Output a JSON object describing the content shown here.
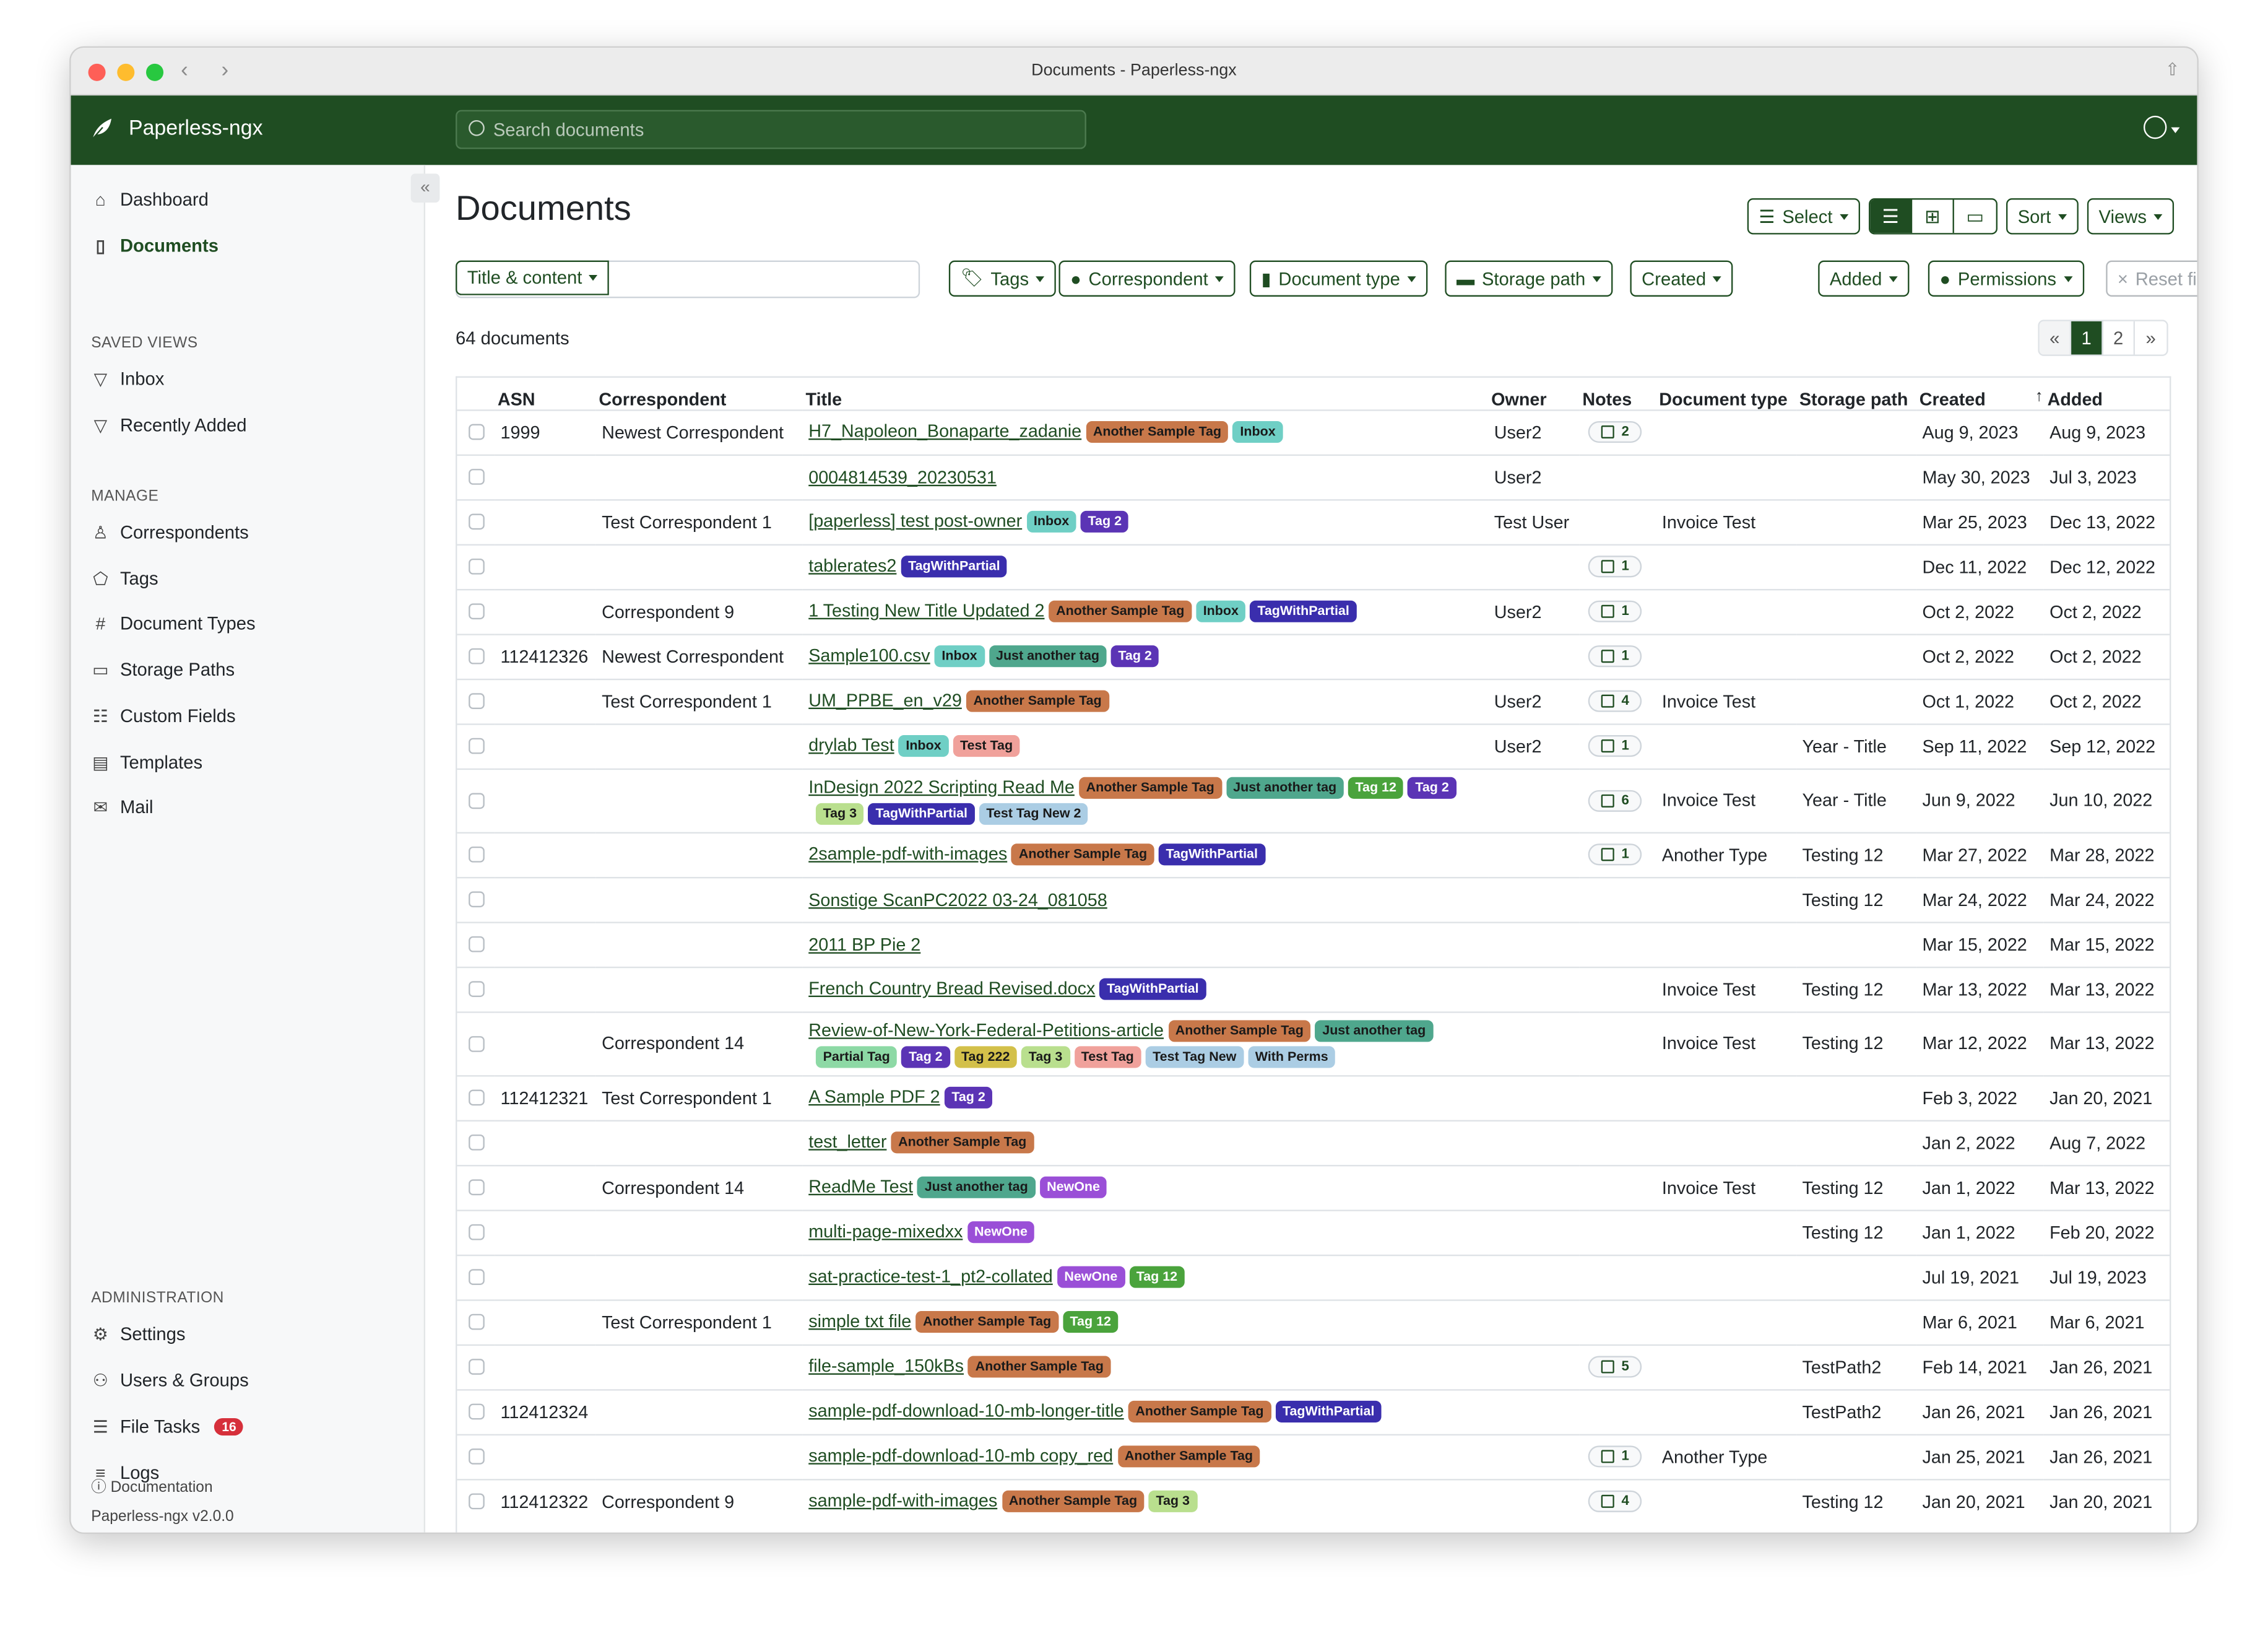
{
  "window": {
    "title": "Documents - Paperless-ngx"
  },
  "header": {
    "brand": "Paperless-ngx",
    "search_placeholder": "Search documents"
  },
  "sidebar": {
    "items": [
      {
        "label": "Dashboard",
        "icon": "house-icon"
      },
      {
        "label": "Documents",
        "icon": "file-icon",
        "active": true
      }
    ],
    "saved_views_heading": "SAVED VIEWS",
    "saved_views": [
      {
        "label": "Inbox",
        "icon": "funnel-icon"
      },
      {
        "label": "Recently Added",
        "icon": "funnel-icon"
      }
    ],
    "manage_heading": "MANAGE",
    "manage": [
      {
        "label": "Correspondents",
        "icon": "person-icon"
      },
      {
        "label": "Tags",
        "icon": "tags-icon"
      },
      {
        "label": "Document Types",
        "icon": "hash-icon"
      },
      {
        "label": "Storage Paths",
        "icon": "folder-icon"
      },
      {
        "label": "Custom Fields",
        "icon": "ui-radios-icon"
      },
      {
        "label": "Templates",
        "icon": "file-text-icon"
      },
      {
        "label": "Mail",
        "icon": "envelope-icon"
      }
    ],
    "admin_heading": "ADMINISTRATION",
    "admin": [
      {
        "label": "Settings",
        "icon": "gear-icon"
      },
      {
        "label": "Users & Groups",
        "icon": "people-icon"
      },
      {
        "label": "File Tasks",
        "icon": "list-task-icon",
        "badge": "16"
      },
      {
        "label": "Logs",
        "icon": "text-list-icon"
      }
    ],
    "documentation": "Documentation",
    "version": "Paperless-ngx v2.0.0"
  },
  "main": {
    "title": "Documents",
    "toolbar": {
      "select": "Select",
      "sort": "Sort",
      "views": "Views",
      "active_view": "table"
    },
    "filters": {
      "text_mode": "Title & content",
      "text_value": "",
      "tags": "Tags",
      "correspondent": "Correspondent",
      "document_type": "Document type",
      "storage_path": "Storage path",
      "created": "Created",
      "added": "Added",
      "permissions": "Permissions",
      "reset": "Reset filters"
    },
    "count": "64 documents",
    "pagination": {
      "prev": "«",
      "pages": [
        "1",
        "2"
      ],
      "current": "1",
      "next": "»"
    },
    "columns": [
      "ASN",
      "Correspondent",
      "Title",
      "Owner",
      "Notes",
      "Document type",
      "Storage path",
      "Created",
      "Added"
    ],
    "sort_column": "Added"
  },
  "tag_colors": {
    "Another Sample Tag": {
      "bg": "#c8784a",
      "fg": "#1a1a1a"
    },
    "Inbox": {
      "bg": "#6fcfc5",
      "fg": "#1a1a1a"
    },
    "Tag 2": {
      "bg": "#5b34b5",
      "fg": "#ffffff"
    },
    "TagWithPartial": {
      "bg": "#3a2ead",
      "fg": "#ffffff"
    },
    "Just another tag": {
      "bg": "#4fa78d",
      "fg": "#1a1a1a"
    },
    "Tag 12": {
      "bg": "#4aa33c",
      "fg": "#ffffff"
    },
    "Tag 3": {
      "bg": "#b9df8e",
      "fg": "#1a1a1a"
    },
    "Test Tag New 2": {
      "bg": "#abcde4",
      "fg": "#1a1a1a"
    },
    "Test Tag New": {
      "bg": "#abcde4",
      "fg": "#1a1a1a"
    },
    "With Perms": {
      "bg": "#abcde4",
      "fg": "#1a1a1a"
    },
    "Test Tag": {
      "bg": "#f0a19b",
      "fg": "#1a1a1a"
    },
    "Partial Tag": {
      "bg": "#8dd9a5",
      "fg": "#1a1a1a"
    },
    "Tag 222": {
      "bg": "#d3c04a",
      "fg": "#1a1a1a"
    },
    "NewOne": {
      "bg": "#9a4fd7",
      "fg": "#ffffff"
    }
  },
  "rows": [
    {
      "asn": "1999",
      "correspondent": "Newest Correspondent",
      "title": "H7_Napoleon_Bonaparte_zadanie",
      "tags": [
        "Another Sample Tag",
        "Inbox"
      ],
      "owner": "User2",
      "notes": "2",
      "doctype": "",
      "storage": "",
      "created": "Aug 9, 2023",
      "added": "Aug 9, 2023"
    },
    {
      "asn": "",
      "correspondent": "",
      "title": "0004814539_20230531",
      "tags": [],
      "owner": "User2",
      "notes": "",
      "doctype": "",
      "storage": "",
      "created": "May 30, 2023",
      "added": "Jul 3, 2023"
    },
    {
      "asn": "",
      "correspondent": "Test Correspondent 1",
      "title": "[paperless] test post-owner",
      "tags": [
        "Inbox",
        "Tag 2"
      ],
      "owner": "Test User",
      "notes": "",
      "doctype": "Invoice Test",
      "storage": "",
      "created": "Mar 25, 2023",
      "added": "Dec 13, 2022"
    },
    {
      "asn": "",
      "correspondent": "",
      "title": "tablerates2",
      "tags": [
        "TagWithPartial"
      ],
      "owner": "",
      "notes": "1",
      "doctype": "",
      "storage": "",
      "created": "Dec 11, 2022",
      "added": "Dec 12, 2022"
    },
    {
      "asn": "",
      "correspondent": "Correspondent 9",
      "title": "1 Testing New Title Updated 2",
      "tags": [
        "Another Sample Tag",
        "Inbox",
        "TagWithPartial"
      ],
      "owner": "User2",
      "notes": "1",
      "doctype": "",
      "storage": "",
      "created": "Oct 2, 2022",
      "added": "Oct 2, 2022"
    },
    {
      "asn": "112412326",
      "correspondent": "Newest Correspondent",
      "title": "Sample100.csv",
      "tags": [
        "Inbox",
        "Just another tag",
        "Tag 2"
      ],
      "owner": "",
      "notes": "1",
      "doctype": "",
      "storage": "",
      "created": "Oct 2, 2022",
      "added": "Oct 2, 2022"
    },
    {
      "asn": "",
      "correspondent": "Test Correspondent 1",
      "title": "UM_PPBE_en_v29",
      "tags": [
        "Another Sample Tag"
      ],
      "owner": "User2",
      "notes": "4",
      "doctype": "Invoice Test",
      "storage": "",
      "created": "Oct 1, 2022",
      "added": "Oct 2, 2022"
    },
    {
      "asn": "",
      "correspondent": "",
      "title": "drylab Test",
      "tags": [
        "Inbox",
        "Test Tag"
      ],
      "owner": "User2",
      "notes": "1",
      "doctype": "",
      "storage": "Year - Title",
      "created": "Sep 11, 2022",
      "added": "Sep 12, 2022"
    },
    {
      "asn": "",
      "correspondent": "",
      "title": "InDesign 2022 Scripting Read Me",
      "tags": [
        "Another Sample Tag",
        "Just another tag",
        "Tag 12",
        "Tag 2"
      ],
      "tags2": [
        "Tag 3",
        "TagWithPartial",
        "Test Tag New 2"
      ],
      "owner": "",
      "notes": "6",
      "doctype": "Invoice Test",
      "storage": "Year - Title",
      "created": "Jun 9, 2022",
      "added": "Jun 10, 2022"
    },
    {
      "asn": "",
      "correspondent": "",
      "title": "2sample-pdf-with-images",
      "tags": [
        "Another Sample Tag",
        "TagWithPartial"
      ],
      "owner": "",
      "notes": "1",
      "doctype": "Another Type",
      "storage": "Testing 12",
      "created": "Mar 27, 2022",
      "added": "Mar 28, 2022"
    },
    {
      "asn": "",
      "correspondent": "",
      "title": "Sonstige ScanPC2022 03-24_081058",
      "tags": [],
      "owner": "",
      "notes": "",
      "doctype": "",
      "storage": "Testing 12",
      "created": "Mar 24, 2022",
      "added": "Mar 24, 2022"
    },
    {
      "asn": "",
      "correspondent": "",
      "title": "2011 BP Pie 2",
      "tags": [],
      "owner": "",
      "notes": "",
      "doctype": "",
      "storage": "",
      "created": "Mar 15, 2022",
      "added": "Mar 15, 2022"
    },
    {
      "asn": "",
      "correspondent": "",
      "title": "French Country Bread Revised.docx",
      "tags": [
        "TagWithPartial"
      ],
      "owner": "",
      "notes": "",
      "doctype": "Invoice Test",
      "storage": "Testing 12",
      "created": "Mar 13, 2022",
      "added": "Mar 13, 2022"
    },
    {
      "asn": "",
      "correspondent": "Correspondent 14",
      "title": "Review-of-New-York-Federal-Petitions-article",
      "tags": [
        "Another Sample Tag",
        "Just another tag"
      ],
      "tags2": [
        "Partial Tag",
        "Tag 2",
        "Tag 222",
        "Tag 3",
        "Test Tag",
        "Test Tag New",
        "With Perms"
      ],
      "owner": "",
      "notes": "",
      "doctype": "Invoice Test",
      "storage": "Testing 12",
      "created": "Mar 12, 2022",
      "added": "Mar 13, 2022"
    },
    {
      "asn": "112412321",
      "correspondent": "Test Correspondent 1",
      "title": "A Sample PDF 2",
      "tags": [
        "Tag 2"
      ],
      "owner": "",
      "notes": "",
      "doctype": "",
      "storage": "",
      "created": "Feb 3, 2022",
      "added": "Jan 20, 2021"
    },
    {
      "asn": "",
      "correspondent": "",
      "title": "test_letter",
      "tags": [
        "Another Sample Tag"
      ],
      "owner": "",
      "notes": "",
      "doctype": "",
      "storage": "",
      "created": "Jan 2, 2022",
      "added": "Aug 7, 2022"
    },
    {
      "asn": "",
      "correspondent": "Correspondent 14",
      "title": "ReadMe Test",
      "tags": [
        "Just another tag",
        "NewOne"
      ],
      "owner": "",
      "notes": "",
      "doctype": "Invoice Test",
      "storage": "Testing 12",
      "created": "Jan 1, 2022",
      "added": "Mar 13, 2022"
    },
    {
      "asn": "",
      "correspondent": "",
      "title": "multi-page-mixedxx",
      "tags": [
        "NewOne"
      ],
      "owner": "",
      "notes": "",
      "doctype": "",
      "storage": "Testing 12",
      "created": "Jan 1, 2022",
      "added": "Feb 20, 2022"
    },
    {
      "asn": "",
      "correspondent": "",
      "title": "sat-practice-test-1_pt2-collated",
      "tags": [
        "NewOne",
        "Tag 12"
      ],
      "owner": "",
      "notes": "",
      "doctype": "",
      "storage": "",
      "created": "Jul 19, 2021",
      "added": "Jul 19, 2023"
    },
    {
      "asn": "",
      "correspondent": "Test Correspondent 1",
      "title": "simple txt file",
      "tags": [
        "Another Sample Tag",
        "Tag 12"
      ],
      "owner": "",
      "notes": "",
      "doctype": "",
      "storage": "",
      "created": "Mar 6, 2021",
      "added": "Mar 6, 2021"
    },
    {
      "asn": "",
      "correspondent": "",
      "title": "file-sample_150kBs",
      "tags": [
        "Another Sample Tag"
      ],
      "owner": "",
      "notes": "5",
      "doctype": "",
      "storage": "TestPath2",
      "created": "Feb 14, 2021",
      "added": "Jan 26, 2021"
    },
    {
      "asn": "112412324",
      "correspondent": "",
      "title": "sample-pdf-download-10-mb-longer-title",
      "tags": [
        "Another Sample Tag",
        "TagWithPartial"
      ],
      "owner": "",
      "notes": "",
      "doctype": "",
      "storage": "TestPath2",
      "created": "Jan 26, 2021",
      "added": "Jan 26, 2021"
    },
    {
      "asn": "",
      "correspondent": "",
      "title": "sample-pdf-download-10-mb copy_red",
      "tags": [
        "Another Sample Tag"
      ],
      "owner": "",
      "notes": "1",
      "doctype": "Another Type",
      "storage": "",
      "created": "Jan 25, 2021",
      "added": "Jan 26, 2021"
    },
    {
      "asn": "112412322",
      "correspondent": "Correspondent 9",
      "title": "sample-pdf-with-images",
      "tags": [
        "Another Sample Tag",
        "Tag 3"
      ],
      "owner": "",
      "notes": "4",
      "doctype": "",
      "storage": "Testing 12",
      "created": "Jan 20, 2021",
      "added": "Jan 20, 2021"
    }
  ]
}
